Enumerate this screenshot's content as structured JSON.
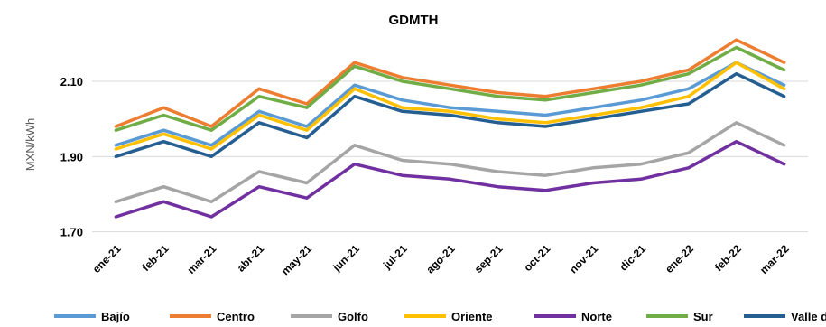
{
  "chart_data": {
    "type": "line",
    "title": "GDMTH",
    "xlabel": "",
    "ylabel": "MXN/kWh",
    "ylim": [
      1.68,
      2.22
    ],
    "yticks": [
      "1.70",
      "1.90",
      "2.10"
    ],
    "grid": true,
    "legend_position": "bottom",
    "categories": [
      "ene-21",
      "feb-21",
      "mar-21",
      "abr-21",
      "may-21",
      "jun-21",
      "jul-21",
      "ago-21",
      "sep-21",
      "oct-21",
      "nov-21",
      "dic-21",
      "ene-22",
      "feb-22",
      "mar-22"
    ],
    "series": [
      {
        "name": "Bajío",
        "color": "#5b9bd5",
        "values": [
          1.93,
          1.97,
          1.93,
          2.02,
          1.98,
          2.09,
          2.05,
          2.03,
          2.02,
          2.01,
          2.03,
          2.05,
          2.08,
          2.15,
          2.09
        ]
      },
      {
        "name": "Centro",
        "color": "#ed7d31",
        "values": [
          1.98,
          2.03,
          1.98,
          2.08,
          2.04,
          2.15,
          2.11,
          2.09,
          2.07,
          2.06,
          2.08,
          2.1,
          2.13,
          2.21,
          2.15
        ]
      },
      {
        "name": "Golfo",
        "color": "#a5a5a5",
        "values": [
          1.78,
          1.82,
          1.78,
          1.86,
          1.83,
          1.93,
          1.89,
          1.88,
          1.86,
          1.85,
          1.87,
          1.88,
          1.91,
          1.99,
          1.93
        ]
      },
      {
        "name": "Oriente",
        "color": "#ffc000",
        "values": [
          1.92,
          1.96,
          1.92,
          2.01,
          1.97,
          2.08,
          2.03,
          2.02,
          2.0,
          1.99,
          2.01,
          2.03,
          2.06,
          2.15,
          2.08
        ]
      },
      {
        "name": "Norte",
        "color": "#7030a0",
        "values": [
          1.74,
          1.78,
          1.74,
          1.82,
          1.79,
          1.88,
          1.85,
          1.84,
          1.82,
          1.81,
          1.83,
          1.84,
          1.87,
          1.94,
          1.88
        ]
      },
      {
        "name": "Sur",
        "color": "#70ad47",
        "values": [
          1.97,
          2.01,
          1.97,
          2.06,
          2.03,
          2.14,
          2.1,
          2.08,
          2.06,
          2.05,
          2.07,
          2.09,
          2.12,
          2.19,
          2.13
        ]
      },
      {
        "name": "Valle de México",
        "color": "#255e91",
        "values": [
          1.9,
          1.94,
          1.9,
          1.99,
          1.95,
          2.06,
          2.02,
          2.01,
          1.99,
          1.98,
          2.0,
          2.02,
          2.04,
          2.12,
          2.06
        ]
      }
    ]
  }
}
